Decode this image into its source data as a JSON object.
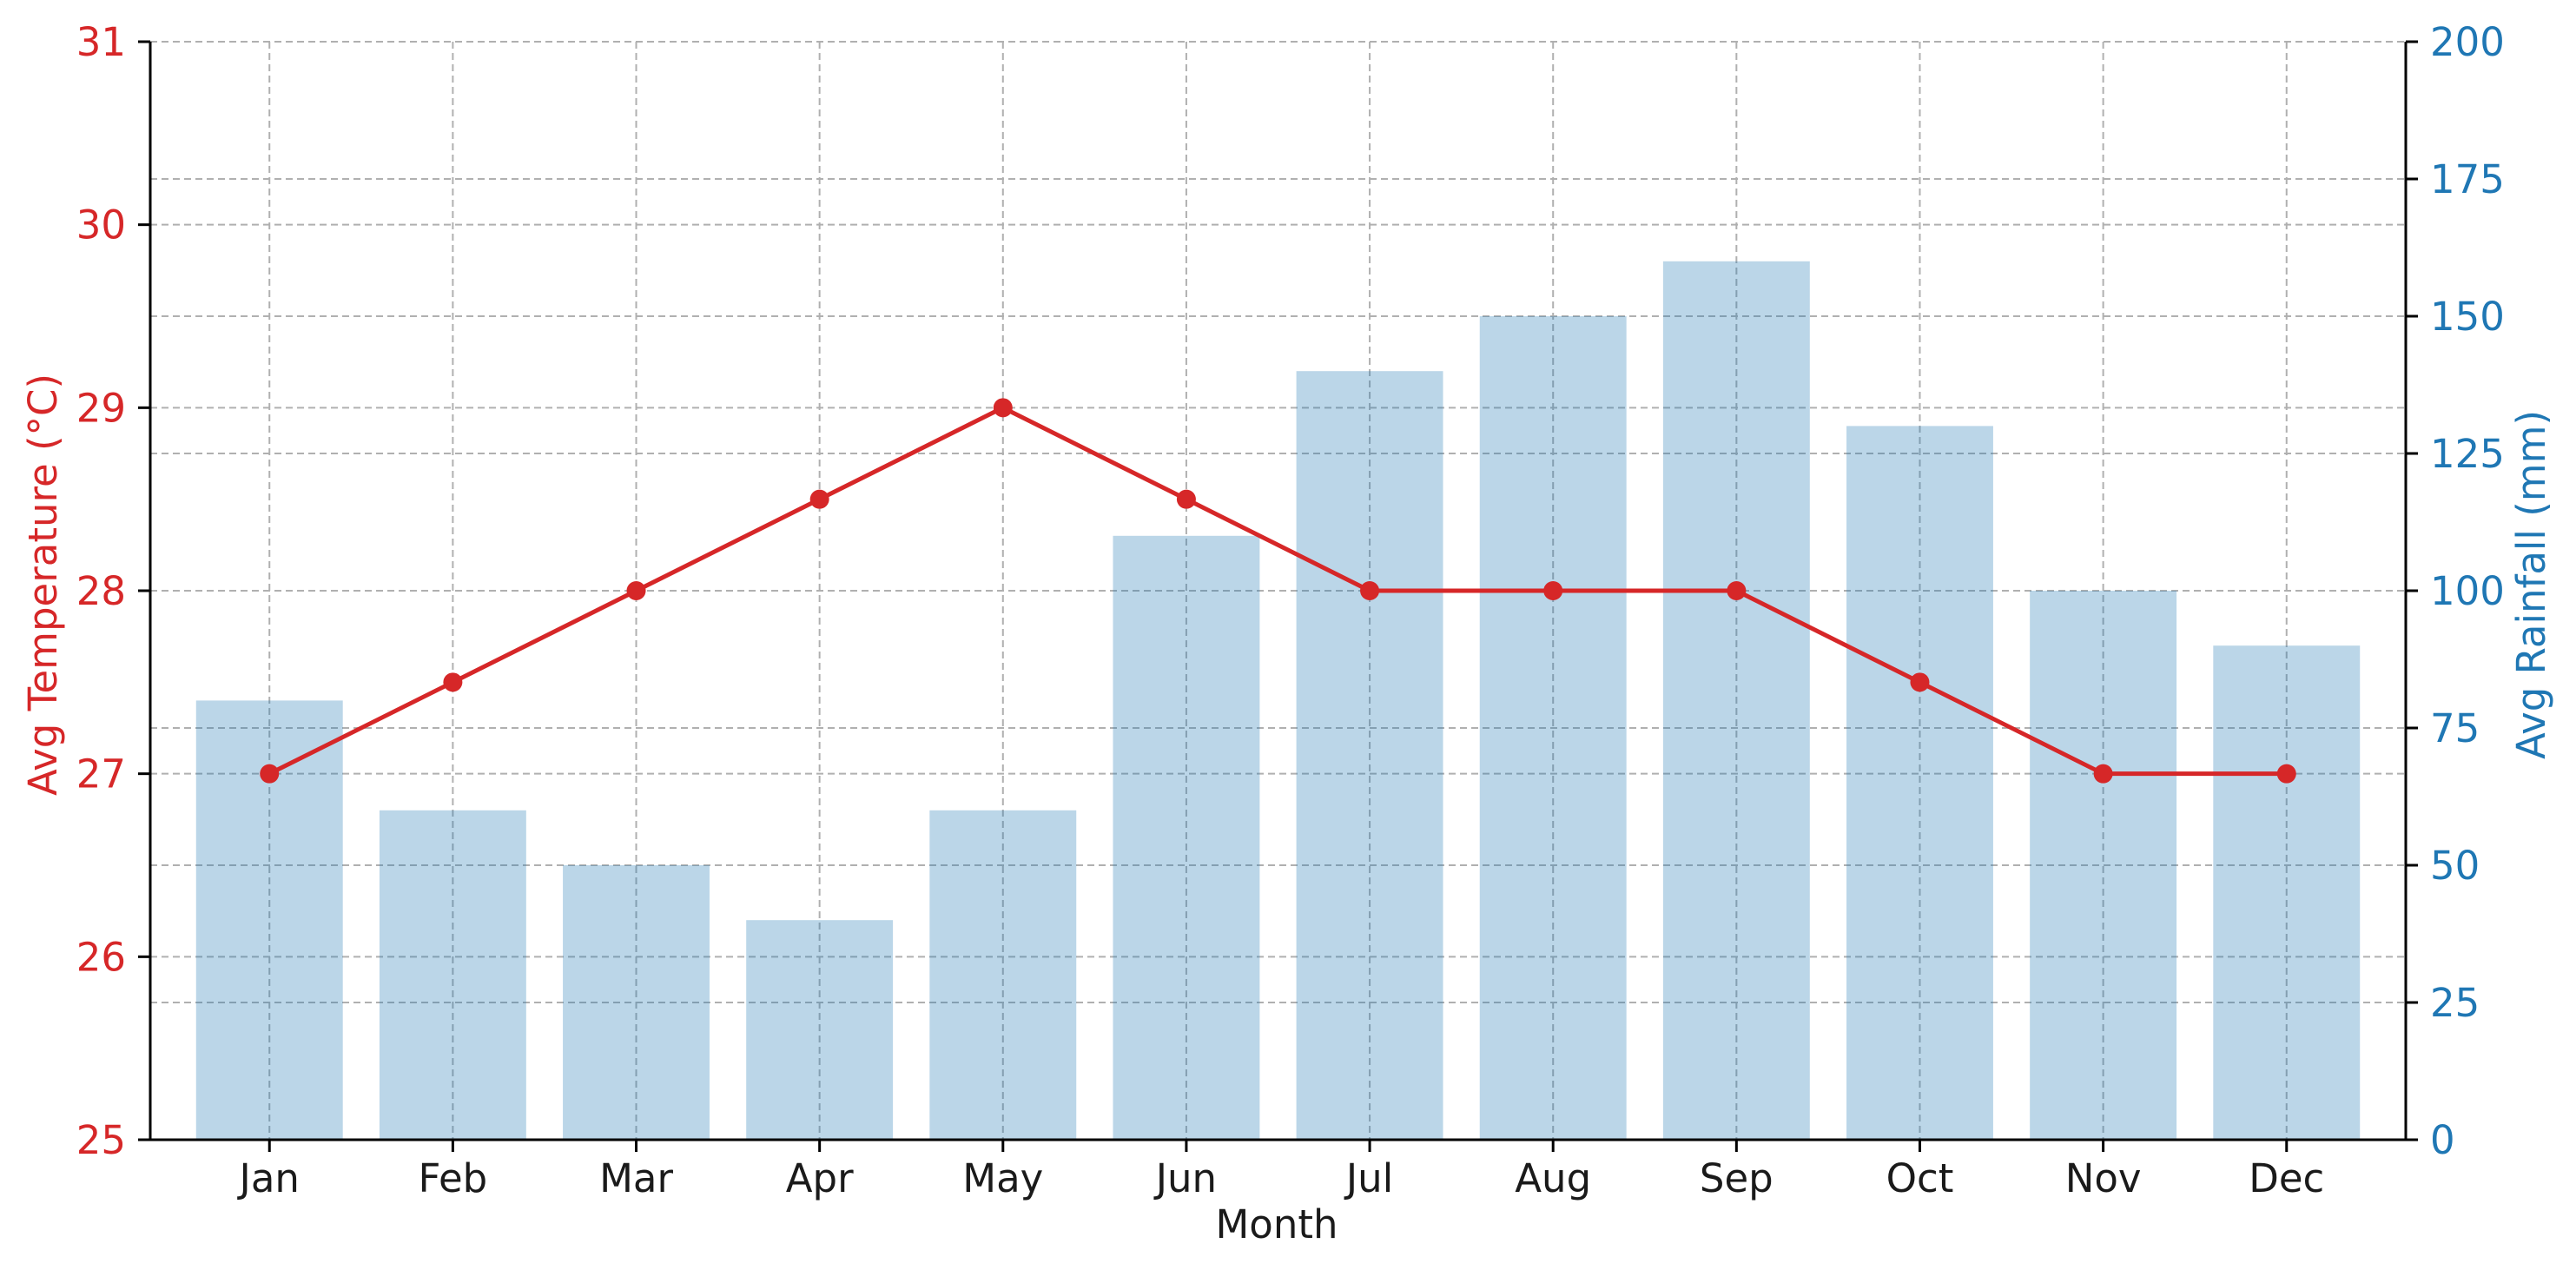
{
  "chart_data": {
    "type": "bar",
    "title": "",
    "xlabel": "Month",
    "categories": [
      "Jan",
      "Feb",
      "Mar",
      "Apr",
      "May",
      "Jun",
      "Jul",
      "Aug",
      "Sep",
      "Oct",
      "Nov",
      "Dec"
    ],
    "y_left": {
      "label": "Avg Temperature (°C)",
      "lim": [
        25,
        31
      ],
      "ticks": [
        25,
        26,
        27,
        28,
        29,
        30,
        31
      ],
      "color": "#d62728"
    },
    "y_right": {
      "label": "Avg Rainfall (mm)",
      "lim": [
        0,
        200
      ],
      "ticks": [
        0,
        25,
        50,
        75,
        100,
        125,
        150,
        175,
        200
      ],
      "color": "#1f77b4"
    },
    "series": [
      {
        "type": "bar",
        "axis": "right",
        "color": "#1f77b4",
        "opacity": 0.3,
        "values": [
          80,
          60,
          50,
          40,
          60,
          110,
          140,
          150,
          160,
          130,
          100,
          90
        ]
      },
      {
        "type": "line",
        "axis": "left",
        "color": "#d62728",
        "marker": "circle",
        "values": [
          27,
          27.5,
          28,
          28.5,
          29,
          28.5,
          28,
          28,
          28,
          27.5,
          27,
          27
        ]
      }
    ],
    "grid": true,
    "legend": "none"
  }
}
